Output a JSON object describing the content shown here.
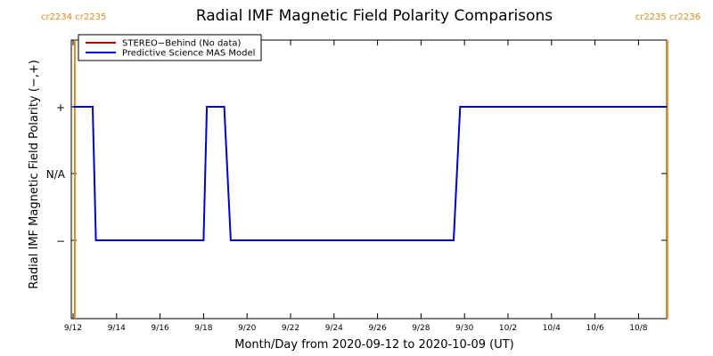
{
  "chart_data": {
    "type": "line",
    "title": "Radial IMF Magnetic Field Polarity Comparisons",
    "xlabel": "Month/Day from 2020-09-12 to 2020-10-09 (UT)",
    "ylabel": "Radial IMF Magnetic Field Polarity (−,+)",
    "x_unit": "days",
    "xlim": [
      0,
      27.33
    ],
    "ylim": [
      -2,
      2
    ],
    "x_ticks": [
      {
        "x": 0,
        "label": "9/12"
      },
      {
        "x": 2,
        "label": "9/14"
      },
      {
        "x": 4,
        "label": "9/16"
      },
      {
        "x": 6,
        "label": "9/18"
      },
      {
        "x": 8,
        "label": "9/20"
      },
      {
        "x": 10,
        "label": "9/22"
      },
      {
        "x": 12,
        "label": "9/24"
      },
      {
        "x": 14,
        "label": "9/26"
      },
      {
        "x": 16,
        "label": "9/28"
      },
      {
        "x": 18,
        "label": "9/30"
      },
      {
        "x": 20,
        "label": "10/2"
      },
      {
        "x": 22,
        "label": "10/4"
      },
      {
        "x": 24,
        "label": "10/6"
      },
      {
        "x": 26,
        "label": "10/8"
      }
    ],
    "y_ticks": [
      {
        "y": 1,
        "label": "+"
      },
      {
        "y": 0,
        "label": "N/A"
      },
      {
        "y": -1,
        "label": "−"
      }
    ],
    "carrington_markers": [
      {
        "x": 0.08,
        "label": "cr2234 cr2235",
        "anchor": "start"
      },
      {
        "x": 27.33,
        "label": "cr2235 cr2236",
        "anchor": "end"
      }
    ],
    "marker_color": "#e08a1e",
    "series": [
      {
        "name": "STEREO−Behind (No data)",
        "color": "#c00000",
        "points": []
      },
      {
        "name": "Predictive Science MAS Model",
        "color": "#0000cc",
        "points": [
          [
            0.0,
            1
          ],
          [
            0.9,
            1
          ],
          [
            1.05,
            -1
          ],
          [
            6.0,
            -1
          ],
          [
            6.15,
            1
          ],
          [
            6.95,
            1
          ],
          [
            7.25,
            -1
          ],
          [
            17.5,
            -1
          ],
          [
            17.8,
            1
          ],
          [
            27.3,
            1
          ]
        ]
      }
    ],
    "legend_position": "top-left",
    "grid": false
  }
}
